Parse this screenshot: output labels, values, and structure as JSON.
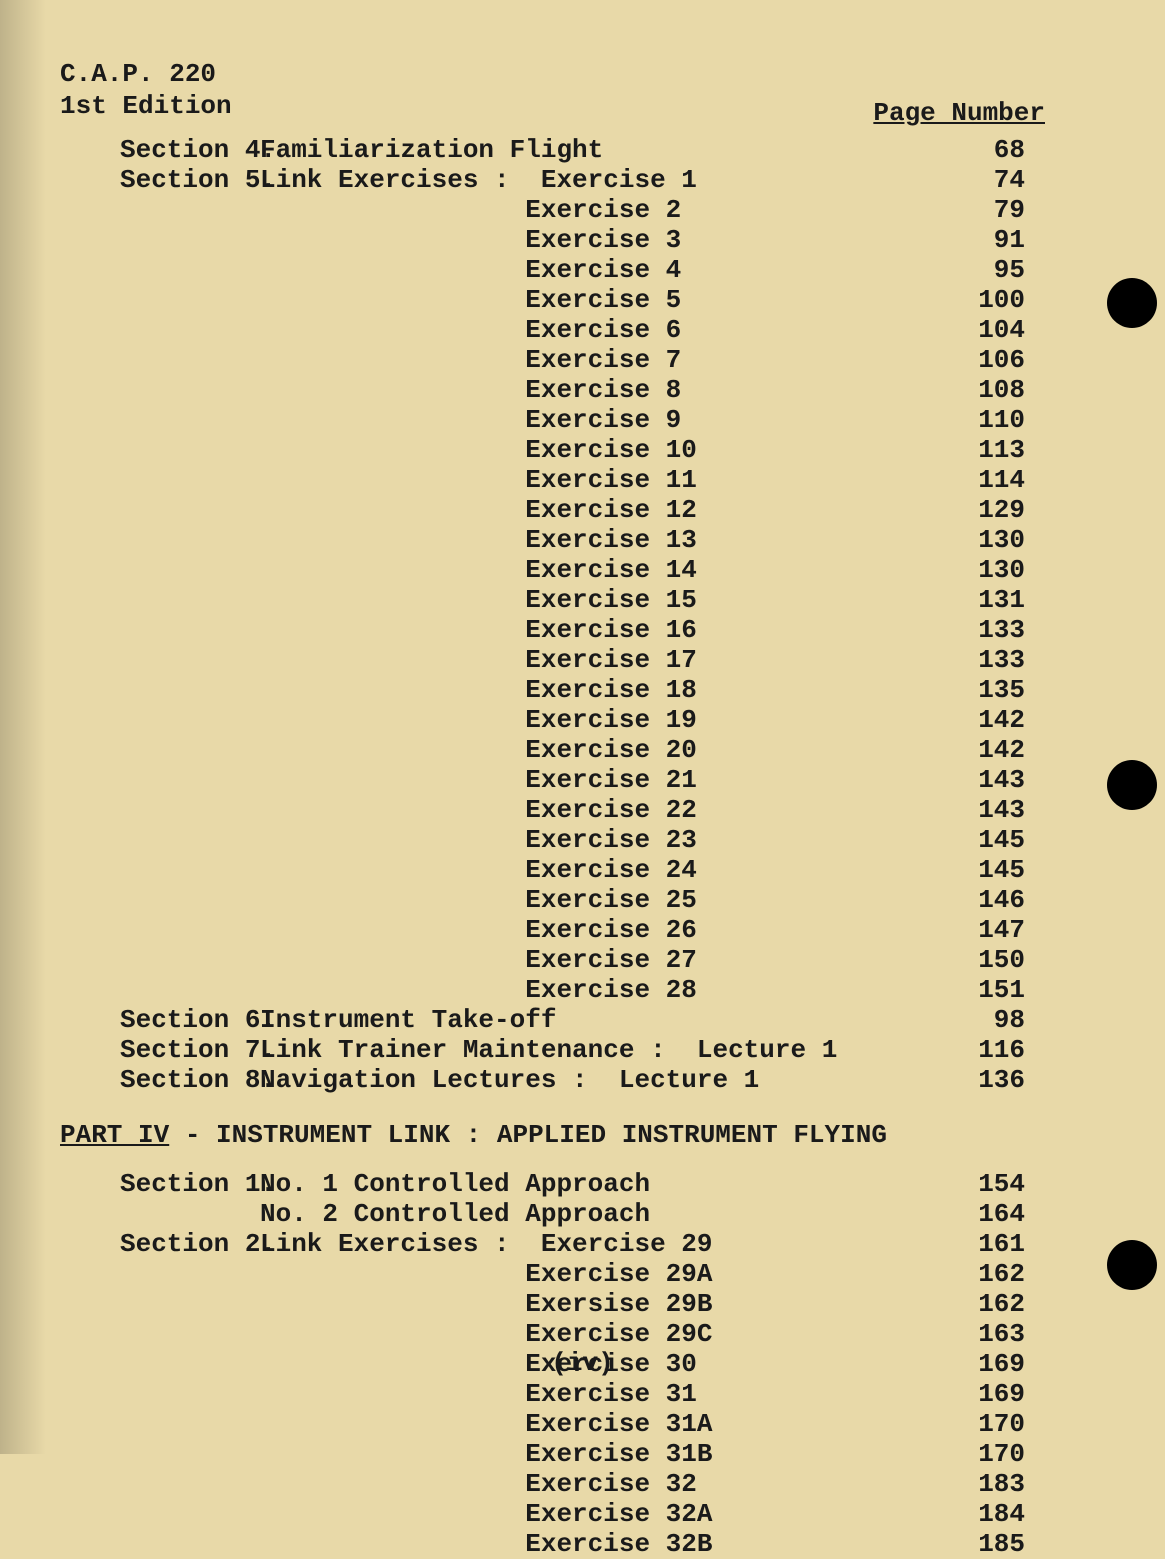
{
  "header": {
    "doc_code": "C.A.P. 220",
    "edition": "1st Edition",
    "page_number_label": "Page Number"
  },
  "footer": {
    "roman": "(iv)"
  },
  "layout": {
    "exercise_indent_chars": 17,
    "lecture_indent_chars": 22
  },
  "sections_top": [
    {
      "section": "Section 4.",
      "desc": "Familiarization Flight",
      "page": "68"
    },
    {
      "section": "Section 5.",
      "desc": "Link Exercises :  Exercise 1",
      "page": "74"
    }
  ],
  "exercises_top": [
    {
      "label": "Exercise 2",
      "page": "79"
    },
    {
      "label": "Exercise 3",
      "page": "91"
    },
    {
      "label": "Exercise 4",
      "page": "95"
    },
    {
      "label": "Exercise 5",
      "page": "100"
    },
    {
      "label": "Exercise 6",
      "page": "104"
    },
    {
      "label": "Exercise 7",
      "page": "106"
    },
    {
      "label": "Exercise 8",
      "page": "108"
    },
    {
      "label": "Exercise 9",
      "page": "110"
    },
    {
      "label": "Exercise 10",
      "page": "113"
    },
    {
      "label": "Exercise 11",
      "page": "114"
    },
    {
      "label": "Exercise 12",
      "page": "129"
    },
    {
      "label": "Exercise 13",
      "page": "130"
    },
    {
      "label": "Exercise 14",
      "page": "130"
    },
    {
      "label": "Exercise 15",
      "page": "131"
    },
    {
      "label": "Exercise 16",
      "page": "133"
    },
    {
      "label": "Exercise 17",
      "page": "133"
    },
    {
      "label": "Exercise 18",
      "page": "135"
    },
    {
      "label": "Exercise 19",
      "page": "142"
    },
    {
      "label": "Exercise 20",
      "page": "142"
    },
    {
      "label": "Exercise 21",
      "page": "143"
    },
    {
      "label": "Exercise 22",
      "page": "143"
    },
    {
      "label": "Exercise 23",
      "page": "145"
    },
    {
      "label": "Exercise 24",
      "page": "145"
    },
    {
      "label": "Exercise 25",
      "page": "146"
    },
    {
      "label": "Exercise 26",
      "page": "147"
    },
    {
      "label": "Exercise 27",
      "page": "150"
    },
    {
      "label": "Exercise 28",
      "page": "151"
    }
  ],
  "sections_mid": [
    {
      "section": "Section 6.",
      "desc": "Instrument Take-off",
      "page": "98"
    },
    {
      "section": "Section 7.",
      "desc": "Link Trainer Maintenance :  Lecture 1",
      "page": "116"
    },
    {
      "section": "Section 8.",
      "desc": "Navigation Lectures :  Lecture 1",
      "page": "136"
    }
  ],
  "part4": {
    "heading_ul": "PART IV",
    "heading_rest": " - INSTRUMENT LINK : APPLIED INSTRUMENT FLYING"
  },
  "sections_part4": [
    {
      "section": "Section 1.",
      "desc": "No. 1 Controlled Approach",
      "page": "154"
    },
    {
      "section": "",
      "desc": "No. 2 Controlled Approach",
      "page": "164"
    },
    {
      "section": "Section 2.",
      "desc": "Link Exercises :  Exercise 29",
      "page": "161"
    }
  ],
  "exercises_part4": [
    {
      "label": "Exercise 29A",
      "page": "162"
    },
    {
      "label": "Exersise 29B",
      "page": "162"
    },
    {
      "label": "Exercise 29C",
      "page": "163"
    },
    {
      "label": "Exercise 30",
      "page": "169"
    },
    {
      "label": "Exercise 31",
      "page": "169"
    },
    {
      "label": "Exercise 31A",
      "page": "170"
    },
    {
      "label": "Exercise 31B",
      "page": "170"
    },
    {
      "label": "Exercise 32",
      "page": "183"
    },
    {
      "label": "Exercise 32A",
      "page": "184"
    },
    {
      "label": "Exercise 32B",
      "page": "185"
    }
  ]
}
